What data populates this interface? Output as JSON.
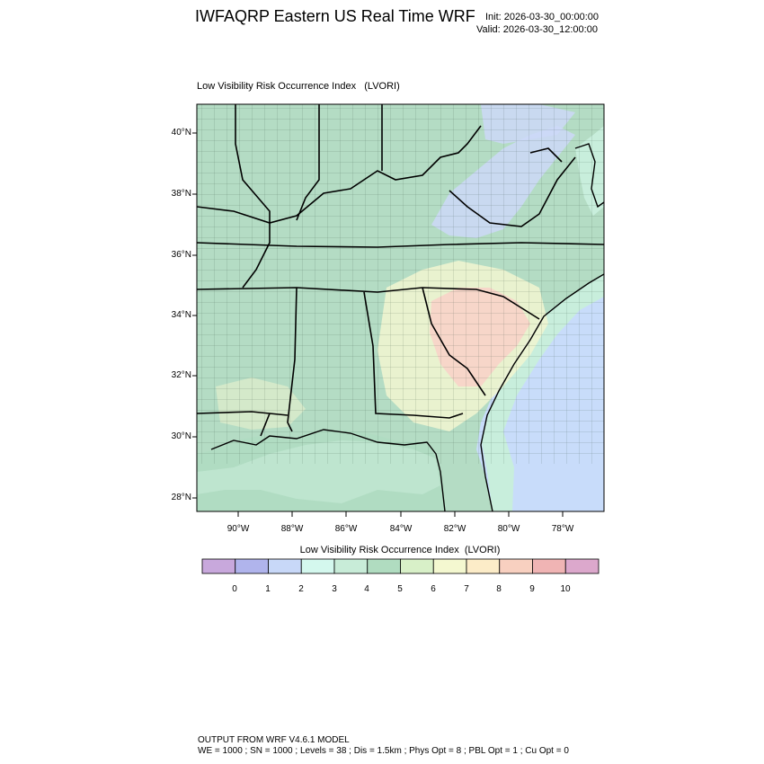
{
  "header": {
    "title": "IWFAQRP Eastern US Real Time WRF",
    "init": "Init: 2026-03-30_00:00:00",
    "valid": "Valid: 2026-03-30_12:00:00"
  },
  "plot": {
    "label": "Low Visibility Risk Occurrence Index   (LVORI)",
    "lat_labels": [
      "40°N",
      "38°N",
      "36°N",
      "34°N",
      "32°N",
      "30°N",
      "28°N"
    ],
    "lon_labels": [
      "90°W",
      "88°W",
      "86°W",
      "84°W",
      "82°W",
      "80°W",
      "78°W"
    ]
  },
  "colorbar": {
    "title": "Low Visibility Risk Occurrence Index  (LVORI)",
    "ticks": [
      "0",
      "1",
      "2",
      "3",
      "4",
      "5",
      "6",
      "7",
      "8",
      "9",
      "10"
    ],
    "colors": [
      "#c8a8dc",
      "#b0b4ec",
      "#c8d8f8",
      "#d4f8ee",
      "#c8ecd8",
      "#b0dcc0",
      "#d8f0c8",
      "#f4f8d0",
      "#fcecc8",
      "#f8d0c0",
      "#f0b4b4",
      "#dca8cc"
    ]
  },
  "map_colors": {
    "land": "#b4dcc4",
    "water_near": "#c8eedc",
    "ocean": "#c8dcfa",
    "gulf": "#b4dcc4",
    "elev_blue": "#ccd8f8",
    "light_yellow": "#eef4d0",
    "light_red": "#f8d4c8"
  },
  "footer": {
    "line1": "OUTPUT FROM WRF V4.6.1 MODEL",
    "line2": "WE = 1000 ; SN = 1000 ; Levels = 38 ; Dis = 1.5km ; Phys Opt = 8 ; PBL Opt = 1 ; Cu Opt = 0"
  }
}
